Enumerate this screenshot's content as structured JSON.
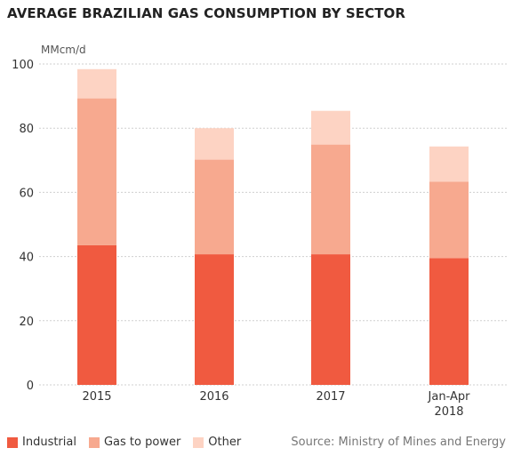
{
  "chart_data": {
    "type": "bar",
    "stacked": true,
    "title": "AVERAGE BRAZILIAN GAS CONSUMPTION BY SECTOR",
    "unit": "MMcm/d",
    "categories": [
      [
        "2015"
      ],
      [
        "2016"
      ],
      [
        "2017"
      ],
      [
        "Jan-Apr",
        "2018"
      ]
    ],
    "series": [
      {
        "name": "Industrial",
        "color": "#f05a40",
        "values": [
          43.5,
          40.7,
          40.7,
          39.5
        ]
      },
      {
        "name": "Gas to power",
        "color": "#f7a98f",
        "values": [
          45.8,
          29.5,
          34.2,
          23.8
        ]
      },
      {
        "name": "Other",
        "color": "#fdd3c3",
        "values": [
          9.1,
          9.8,
          10.5,
          11.0
        ]
      }
    ],
    "ylim": [
      0,
      100
    ],
    "yticks": [
      0,
      20,
      40,
      60,
      80,
      100
    ],
    "grid": true,
    "legend_position": "bottom-left",
    "source": "Source: Ministry of Mines and Energy"
  }
}
